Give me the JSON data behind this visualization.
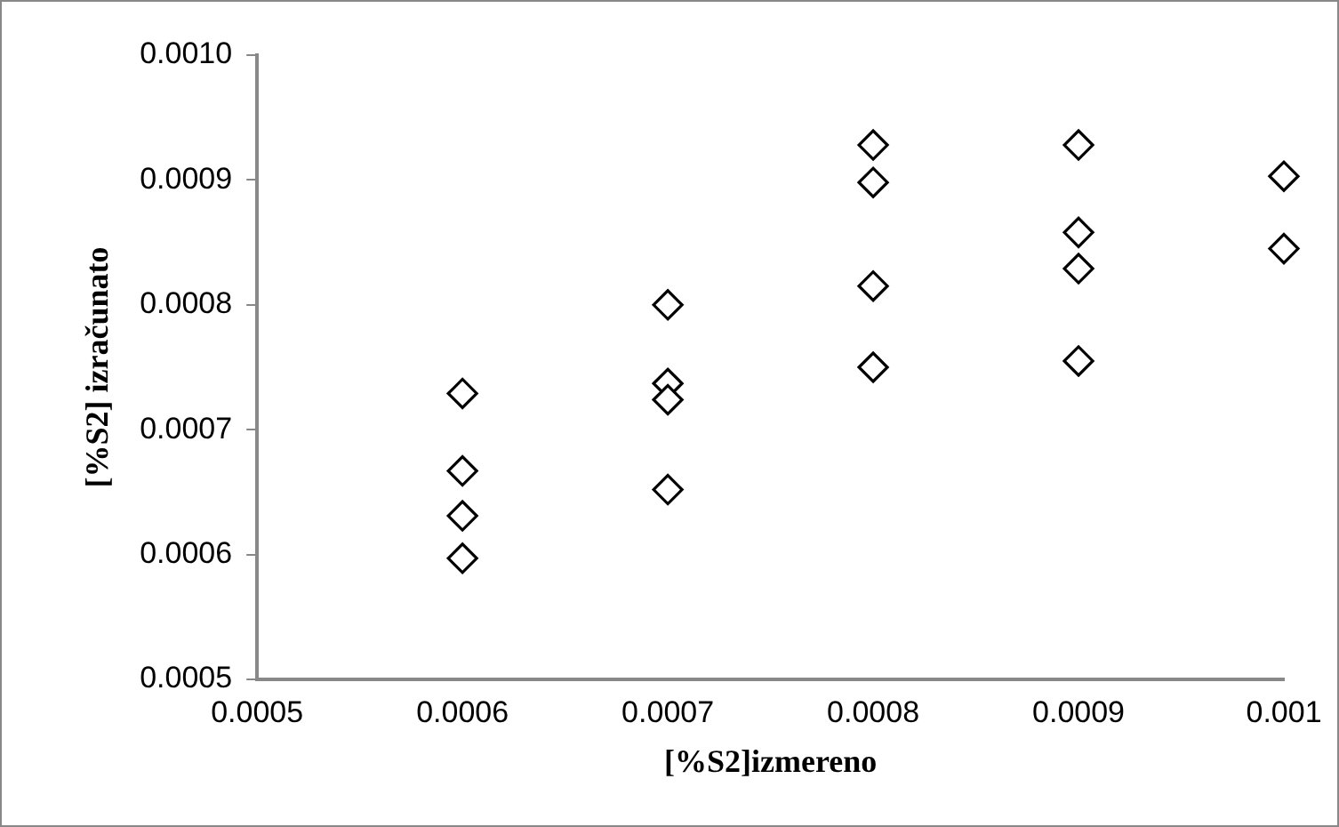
{
  "chart_data": {
    "type": "scatter",
    "xlabel": "[%S2]izmereno",
    "ylabel": "[%S2] izračunato",
    "marker": "diamond",
    "grid": false,
    "legend": false,
    "xlim": [
      0.0005,
      0.001
    ],
    "xticks": [
      0.0005,
      0.0006,
      0.0007,
      0.0008,
      0.0009,
      {
        "value": 0.001,
        "label": "0.001"
      }
    ],
    "ylim": [
      0.0005,
      0.001
    ],
    "yticks": [
      0.0005,
      0.0006,
      0.0007,
      0.0008,
      0.0009,
      {
        "value": 0.001,
        "label": "0.0010"
      }
    ],
    "series": [
      {
        "color": "#000000",
        "x": [
          0.0006,
          0.0006,
          0.0006,
          0.0006,
          0.0007,
          0.0007,
          0.0007,
          0.0007,
          0.0008,
          0.0008,
          0.0008,
          0.0008,
          0.0009,
          0.0009,
          0.0009,
          0.0009,
          0.001,
          0.001
        ],
        "values": [
          0.000729,
          0.000667,
          0.000631,
          0.000597,
          0.0008,
          0.000737,
          0.000724,
          0.000652,
          0.000928,
          0.000898,
          0.000815,
          0.00075,
          0.000928,
          0.000858,
          0.000829,
          0.000755,
          0.000903,
          0.000845
        ]
      }
    ]
  }
}
